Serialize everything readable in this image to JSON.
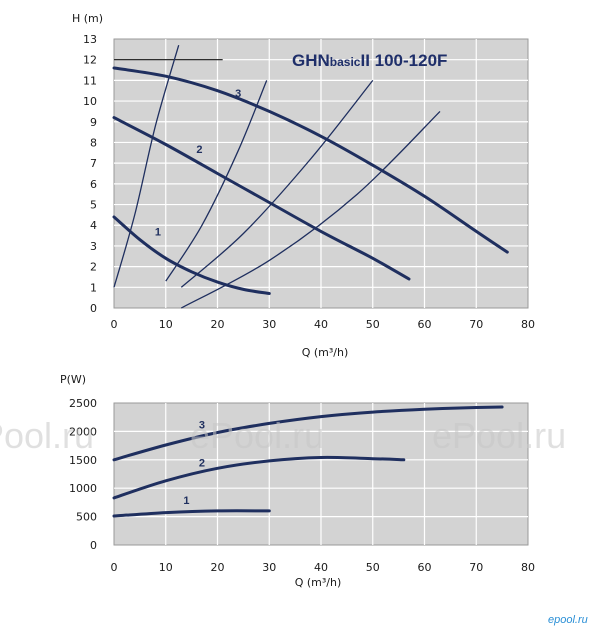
{
  "colors": {
    "plot_bg": "#d3d3d3",
    "grid": "#ffffff",
    "curve": "#1f2f5f",
    "title": "#1f2f6a"
  },
  "watermark": [
    "Pool.ru",
    "ePool.ru",
    "ePool.ru"
  ],
  "logo_text": "epool.ru",
  "chart_data": [
    {
      "type": "line",
      "title": "GHNbasicII 100-120F",
      "title_main": "GHN",
      "title_sub": "basic",
      "title_rest": "II 100-120F",
      "xlabel": "Q (m³/h)",
      "ylabel": "H (m)",
      "xlim": [
        0,
        80
      ],
      "ylim": [
        0,
        13
      ],
      "xticks": [
        "0",
        "10",
        "20",
        "30",
        "40",
        "50",
        "60",
        "70",
        "80"
      ],
      "yticks": [
        "0",
        "1",
        "2",
        "3",
        "4",
        "5",
        "6",
        "7",
        "8",
        "9",
        "10",
        "11",
        "12",
        "13"
      ],
      "grid": true,
      "series": [
        {
          "name": "1",
          "x": [
            0,
            5,
            10,
            15,
            20,
            25,
            30
          ],
          "y": [
            4.4,
            3.3,
            2.4,
            1.75,
            1.25,
            0.9,
            0.7
          ]
        },
        {
          "name": "2",
          "x": [
            0,
            10,
            20,
            30,
            40,
            50,
            57
          ],
          "y": [
            9.2,
            7.9,
            6.5,
            5.1,
            3.7,
            2.4,
            1.4
          ]
        },
        {
          "name": "3",
          "x": [
            0,
            10,
            20,
            30,
            40,
            50,
            60,
            70,
            76
          ],
          "y": [
            11.6,
            11.2,
            10.5,
            9.5,
            8.3,
            6.9,
            5.4,
            3.7,
            2.7
          ]
        }
      ],
      "system_curves": [
        {
          "x": [
            0,
            4,
            8,
            12.5
          ],
          "y": [
            1.0,
            4.5,
            8.8,
            12.7
          ]
        },
        {
          "x": [
            10,
            17,
            24,
            29.5
          ],
          "y": [
            1.3,
            4.0,
            7.6,
            11.0
          ]
        },
        {
          "x": [
            13,
            25,
            38,
            50
          ],
          "y": [
            1.0,
            3.6,
            7.2,
            11.0
          ]
        },
        {
          "x": [
            13,
            30,
            47,
            63
          ],
          "y": [
            0.0,
            2.3,
            5.5,
            9.5
          ]
        }
      ],
      "series_label_pos": [
        {
          "text": "1",
          "x": 8.5,
          "y": 3.5
        },
        {
          "text": "2",
          "x": 16.5,
          "y": 7.5
        },
        {
          "text": "3",
          "x": 24,
          "y": 10.2
        }
      ],
      "legend_box_segment": {
        "x": [
          0,
          21
        ],
        "y": [
          12,
          12
        ]
      }
    },
    {
      "type": "line",
      "title": "",
      "xlabel": "Q (m³/h)",
      "ylabel": "P(W)",
      "xlim": [
        0,
        80
      ],
      "ylim": [
        0,
        2500
      ],
      "xticks": [
        "0",
        "10",
        "20",
        "30",
        "40",
        "50",
        "60",
        "70",
        "80"
      ],
      "yticks": [
        "0",
        "500",
        "1000",
        "1500",
        "2000",
        "2500"
      ],
      "grid": true,
      "series": [
        {
          "name": "1",
          "x": [
            0,
            10,
            20,
            30
          ],
          "y": [
            510,
            570,
            600,
            600
          ]
        },
        {
          "name": "2",
          "x": [
            0,
            10,
            20,
            30,
            40,
            50,
            56
          ],
          "y": [
            830,
            1130,
            1350,
            1480,
            1540,
            1520,
            1500
          ]
        },
        {
          "name": "3",
          "x": [
            0,
            10,
            20,
            30,
            40,
            50,
            60,
            70,
            75
          ],
          "y": [
            1500,
            1760,
            1980,
            2140,
            2260,
            2340,
            2390,
            2420,
            2430
          ]
        }
      ],
      "series_label_pos": [
        {
          "text": "1",
          "x": 14,
          "y": 720
        },
        {
          "text": "2",
          "x": 17,
          "y": 1380
        },
        {
          "text": "3",
          "x": 17,
          "y": 2050
        }
      ]
    }
  ]
}
